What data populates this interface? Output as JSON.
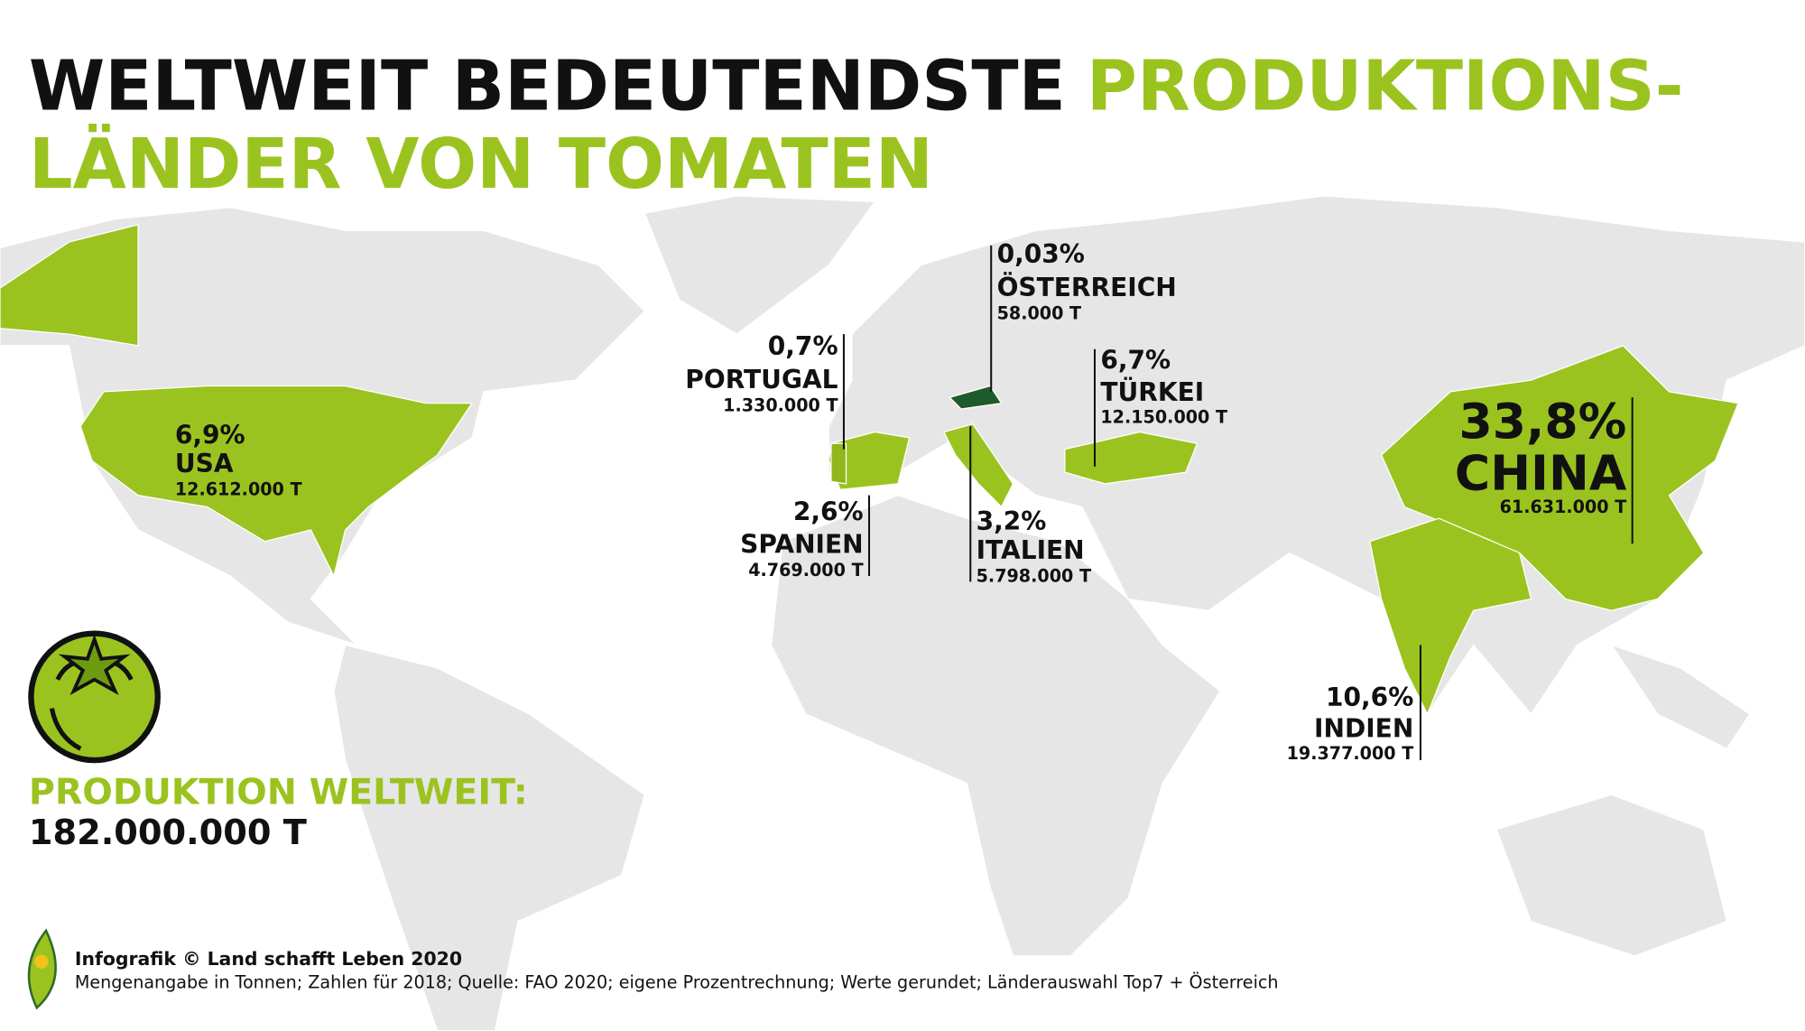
{
  "title": {
    "part1": "WELTWEIT BEDEUTENDSTE",
    "part2": "PRODUKTIONS-",
    "line2": "LÄNDER VON TOMATEN"
  },
  "countries": [
    {
      "percent": "6,9%",
      "name": "USA",
      "amount": "12.612.000 T"
    },
    {
      "percent": "0,7%",
      "name": "PORTUGAL",
      "amount": "1.330.000 T"
    },
    {
      "percent": "0,03%",
      "name": "ÖSTERREICH",
      "amount": "58.000 T"
    },
    {
      "percent": "6,7%",
      "name": "TÜRKEI",
      "amount": "12.150.000 T"
    },
    {
      "percent": "2,6%",
      "name": "SPANIEN",
      "amount": "4.769.000 T"
    },
    {
      "percent": "3,2%",
      "name": "ITALIEN",
      "amount": "5.798.000 T"
    },
    {
      "percent": "33,8%",
      "name": "CHINA",
      "amount": "61.631.000 T"
    },
    {
      "percent": "10,6%",
      "name": "INDIEN",
      "amount": "19.377.000 T"
    }
  ],
  "total": {
    "label": "PRODUKTION WELTWEIT:",
    "value": "182.000.000 T"
  },
  "footer": {
    "credit": "Infografik © Land schafft Leben 2020",
    "note": "Mengenangabe in Tonnen; Zahlen für 2018; Quelle: FAO 2020; eigene Prozentrechnung; Werte gerundet; Länderauswahl Top7 + Österreich"
  }
}
